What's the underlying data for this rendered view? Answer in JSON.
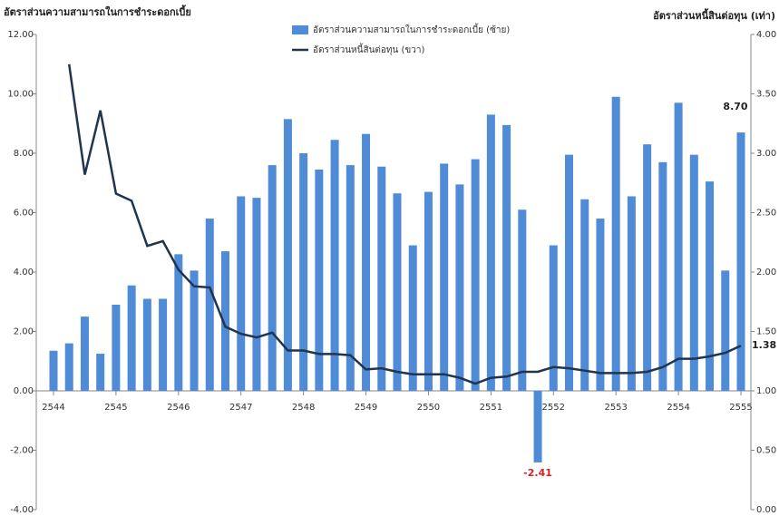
{
  "chart_data": {
    "type": "bar_line",
    "y_title": "อัตราส่วนความสามารถในการชำระดอกเบี้ย",
    "y2_title": "อัตราส่วนหนี้สินต่อทุน (เท่า)",
    "categories": [
      "2544",
      null,
      null,
      null,
      "2545",
      null,
      null,
      null,
      "2546",
      null,
      null,
      null,
      "2547",
      null,
      null,
      null,
      "2548",
      null,
      null,
      null,
      "2549",
      null,
      null,
      null,
      "2550",
      null,
      null,
      null,
      "2551",
      null,
      null,
      null,
      "2552",
      null,
      null,
      null,
      "2553",
      null,
      null,
      null,
      "2554",
      null,
      null,
      null,
      "2555"
    ],
    "series": [
      {
        "name": "อัตราส่วนความสามารถในการชำระดอกเบี้ย (ซ้าย)",
        "color": "#4f8bd6",
        "kind": "bar",
        "axis": "y",
        "values": [
          1.35,
          1.6,
          2.5,
          1.25,
          2.9,
          3.55,
          3.1,
          3.1,
          4.6,
          4.05,
          5.8,
          4.7,
          6.55,
          6.5,
          7.6,
          9.15,
          8.0,
          7.45,
          8.45,
          7.6,
          8.65,
          7.55,
          6.65,
          4.9,
          6.7,
          7.65,
          6.95,
          7.8,
          9.3,
          8.95,
          6.1,
          -2.41,
          4.9,
          7.95,
          6.45,
          5.8,
          9.9,
          6.55,
          8.3,
          7.7,
          9.7,
          7.95,
          7.05,
          4.05,
          8.7
        ],
        "value_labels": [
          null,
          null,
          null,
          null,
          null,
          null,
          null,
          null,
          null,
          null,
          null,
          null,
          null,
          null,
          null,
          null,
          null,
          null,
          null,
          null,
          null,
          null,
          null,
          null,
          null,
          null,
          null,
          null,
          null,
          null,
          null,
          "-2.41",
          null,
          null,
          null,
          null,
          null,
          null,
          null,
          null,
          null,
          null,
          null,
          null,
          "8.70"
        ]
      },
      {
        "name": "อัตราส่วนหนี้สินต่อทุน (ขวา)",
        "color": "#1f3550",
        "kind": "line",
        "axis": "y2",
        "values": [
          null,
          3.75,
          2.82,
          3.36,
          2.66,
          2.6,
          2.22,
          2.26,
          2.02,
          1.88,
          1.87,
          1.54,
          1.48,
          1.45,
          1.49,
          1.34,
          1.34,
          1.31,
          1.31,
          1.3,
          1.18,
          1.19,
          1.16,
          1.14,
          1.14,
          1.14,
          1.11,
          1.06,
          1.11,
          1.12,
          1.16,
          1.16,
          1.2,
          1.19,
          1.17,
          1.15,
          1.15,
          1.15,
          1.16,
          1.2,
          1.27,
          1.27,
          1.29,
          1.32,
          1.38
        ],
        "value_labels": [
          null,
          null,
          null,
          null,
          null,
          null,
          null,
          null,
          null,
          null,
          null,
          null,
          null,
          null,
          null,
          null,
          null,
          null,
          null,
          null,
          null,
          null,
          null,
          null,
          null,
          null,
          null,
          null,
          null,
          null,
          null,
          null,
          null,
          null,
          null,
          null,
          null,
          null,
          null,
          null,
          null,
          null,
          null,
          null,
          "1.38"
        ]
      }
    ],
    "ylim": [
      -4,
      12
    ],
    "yticks": [
      {
        "value": -4,
        "label": "-4.00"
      },
      {
        "value": -2,
        "label": "-2.00"
      },
      {
        "value": 0,
        "label": "0.00"
      },
      {
        "value": 2,
        "label": "2.00"
      },
      {
        "value": 4,
        "label": "4.00"
      },
      {
        "value": 6,
        "label": "6.00"
      },
      {
        "value": 8,
        "label": "8.00"
      },
      {
        "value": 10,
        "label": "10.00"
      },
      {
        "value": 12,
        "label": "12.00"
      }
    ],
    "y2lim": [
      0,
      4
    ],
    "y2ticks": [
      {
        "value": 0,
        "label": "0.00"
      },
      {
        "value": 0.5,
        "label": "0.50"
      },
      {
        "value": 1,
        "label": "1.00"
      },
      {
        "value": 1.5,
        "label": "1.50"
      },
      {
        "value": 2,
        "label": "2.00"
      },
      {
        "value": 2.5,
        "label": "2.50"
      },
      {
        "value": 3,
        "label": "3.00"
      },
      {
        "value": 3.5,
        "label": "3.50"
      },
      {
        "value": 4,
        "label": "4.00"
      }
    ]
  }
}
